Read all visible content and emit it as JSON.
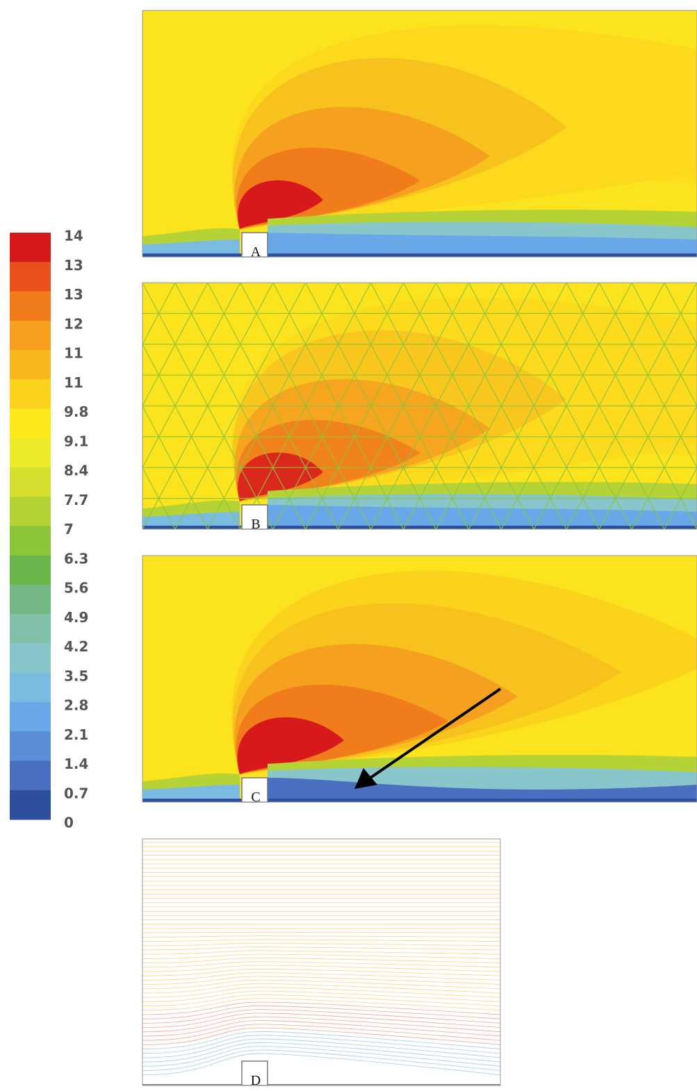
{
  "colorbar": {
    "labels": [
      "14",
      "13",
      "13",
      "12",
      "11",
      "11",
      "9.8",
      "9.1",
      "8.4",
      "7.7",
      "7",
      "6.3",
      "5.6",
      "4.9",
      "4.2",
      "3.5",
      "2.8",
      "2.1",
      "1.4",
      "0.7",
      "0"
    ],
    "colors": [
      "#d7191c",
      "#e8501c",
      "#f07c1c",
      "#f5a01e",
      "#f8b81e",
      "#fbd31c",
      "#fde81c",
      "#eceb2a",
      "#d4df30",
      "#b5d336",
      "#8cc43a",
      "#6bb64a",
      "#74b886",
      "#80c0a8",
      "#88c6cc",
      "#7abbe2",
      "#68a8e8",
      "#5a8ed6",
      "#4a6fc0",
      "#2f4f9e"
    ]
  },
  "panels": [
    {
      "label": "A"
    },
    {
      "label": "B"
    },
    {
      "label": "C"
    },
    {
      "label": "D"
    }
  ]
}
